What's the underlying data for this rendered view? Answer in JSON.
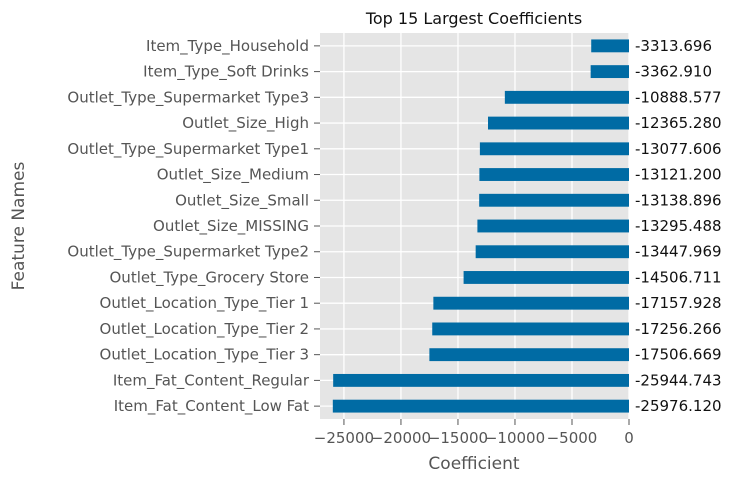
{
  "chart_data": {
    "type": "bar",
    "orientation": "horizontal",
    "title": "Top 15 Largest Coefficients",
    "xlabel": "Coefficient",
    "ylabel": "Feature Names",
    "xlim": [
      -27100,
      0
    ],
    "xticks": [
      -25000,
      -20000,
      -15000,
      -10000,
      -5000,
      0
    ],
    "xtick_labels": [
      "−25000",
      "−20000",
      "−15000",
      "−10000",
      "−5000",
      "0"
    ],
    "grid": true,
    "bar_color": "#006ba4",
    "background_color": "#e5e5e5",
    "categories": [
      "Item_Type_Household",
      "Item_Type_Soft Drinks",
      "Outlet_Type_Supermarket Type3",
      "Outlet_Size_High",
      "Outlet_Type_Supermarket Type1",
      "Outlet_Size_Medium",
      "Outlet_Size_Small",
      "Outlet_Size_MISSING",
      "Outlet_Type_Supermarket Type2",
      "Outlet_Type_Grocery Store",
      "Outlet_Location_Type_Tier 1",
      "Outlet_Location_Type_Tier 2",
      "Outlet_Location_Type_Tier 3",
      "Item_Fat_Content_Regular",
      "Item_Fat_Content_Low Fat"
    ],
    "values": [
      -3313.696,
      -3362.91,
      -10888.577,
      -12365.28,
      -13077.606,
      -13121.2,
      -13138.896,
      -13295.488,
      -13447.969,
      -14506.711,
      -17157.928,
      -17256.266,
      -17506.669,
      -25944.743,
      -25976.12
    ],
    "value_labels": [
      "-3313.696",
      "-3362.910",
      "-10888.577",
      "-12365.280",
      "-13077.606",
      "-13121.200",
      "-13138.896",
      "-13295.488",
      "-13447.969",
      "-14506.711",
      "-17157.928",
      "-17256.266",
      "-17506.669",
      "-25944.743",
      "-25976.120"
    ]
  }
}
